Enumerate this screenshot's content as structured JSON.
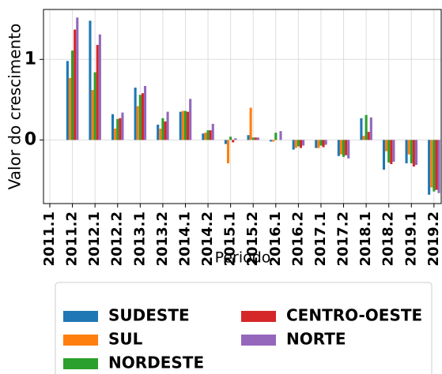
{
  "chart_data": {
    "type": "bar",
    "xlabel": "Periodo",
    "ylabel": "Valor do crescimento",
    "categories": [
      "2011.1",
      "2011.2",
      "2012.1",
      "2012.2",
      "2013.1",
      "2013.2",
      "2014.1",
      "2014.2",
      "2015.1",
      "2015.2",
      "2016.1",
      "2016.2",
      "2017.1",
      "2017.2",
      "2018.1",
      "2018.2",
      "2019.1",
      "2019.2"
    ],
    "series": [
      {
        "name": "SUDESTE",
        "color": "#1f77b4",
        "values": [
          0,
          0.98,
          1.48,
          0.32,
          0.65,
          0.19,
          0.35,
          0.08,
          -0.05,
          0.06,
          -0.02,
          -0.12,
          -0.1,
          -0.2,
          0.27,
          -0.37,
          -0.29,
          -0.68
        ]
      },
      {
        "name": "SUL",
        "color": "#ff7f0e",
        "values": [
          0,
          0.77,
          0.62,
          0.14,
          0.42,
          0.14,
          0.36,
          0.09,
          -0.29,
          0.4,
          -0.02,
          -0.1,
          -0.1,
          -0.18,
          0.05,
          -0.14,
          -0.18,
          -0.59
        ]
      },
      {
        "name": "NORDESTE",
        "color": "#2ca02c",
        "values": [
          0,
          1.11,
          0.84,
          0.26,
          0.56,
          0.27,
          0.36,
          0.12,
          0.04,
          0.03,
          0.09,
          -0.08,
          -0.07,
          -0.21,
          0.31,
          -0.28,
          -0.29,
          -0.64
        ]
      },
      {
        "name": "CENTRO-OESTE",
        "color": "#d62728",
        "values": [
          0,
          1.37,
          1.18,
          0.27,
          0.58,
          0.23,
          0.35,
          0.12,
          -0.03,
          0.03,
          0.0,
          -0.1,
          -0.09,
          -0.19,
          0.1,
          -0.3,
          -0.33,
          -0.62
        ]
      },
      {
        "name": "NORTE",
        "color": "#9467bd",
        "values": [
          0,
          1.52,
          1.31,
          0.34,
          0.67,
          0.35,
          0.51,
          0.2,
          0.02,
          0.03,
          0.11,
          -0.07,
          -0.06,
          -0.23,
          0.28,
          -0.27,
          -0.31,
          -0.66
        ]
      }
    ],
    "ylim": [
      -0.79,
      1.62
    ],
    "yticks": [
      0,
      1
    ],
    "grid": true
  }
}
